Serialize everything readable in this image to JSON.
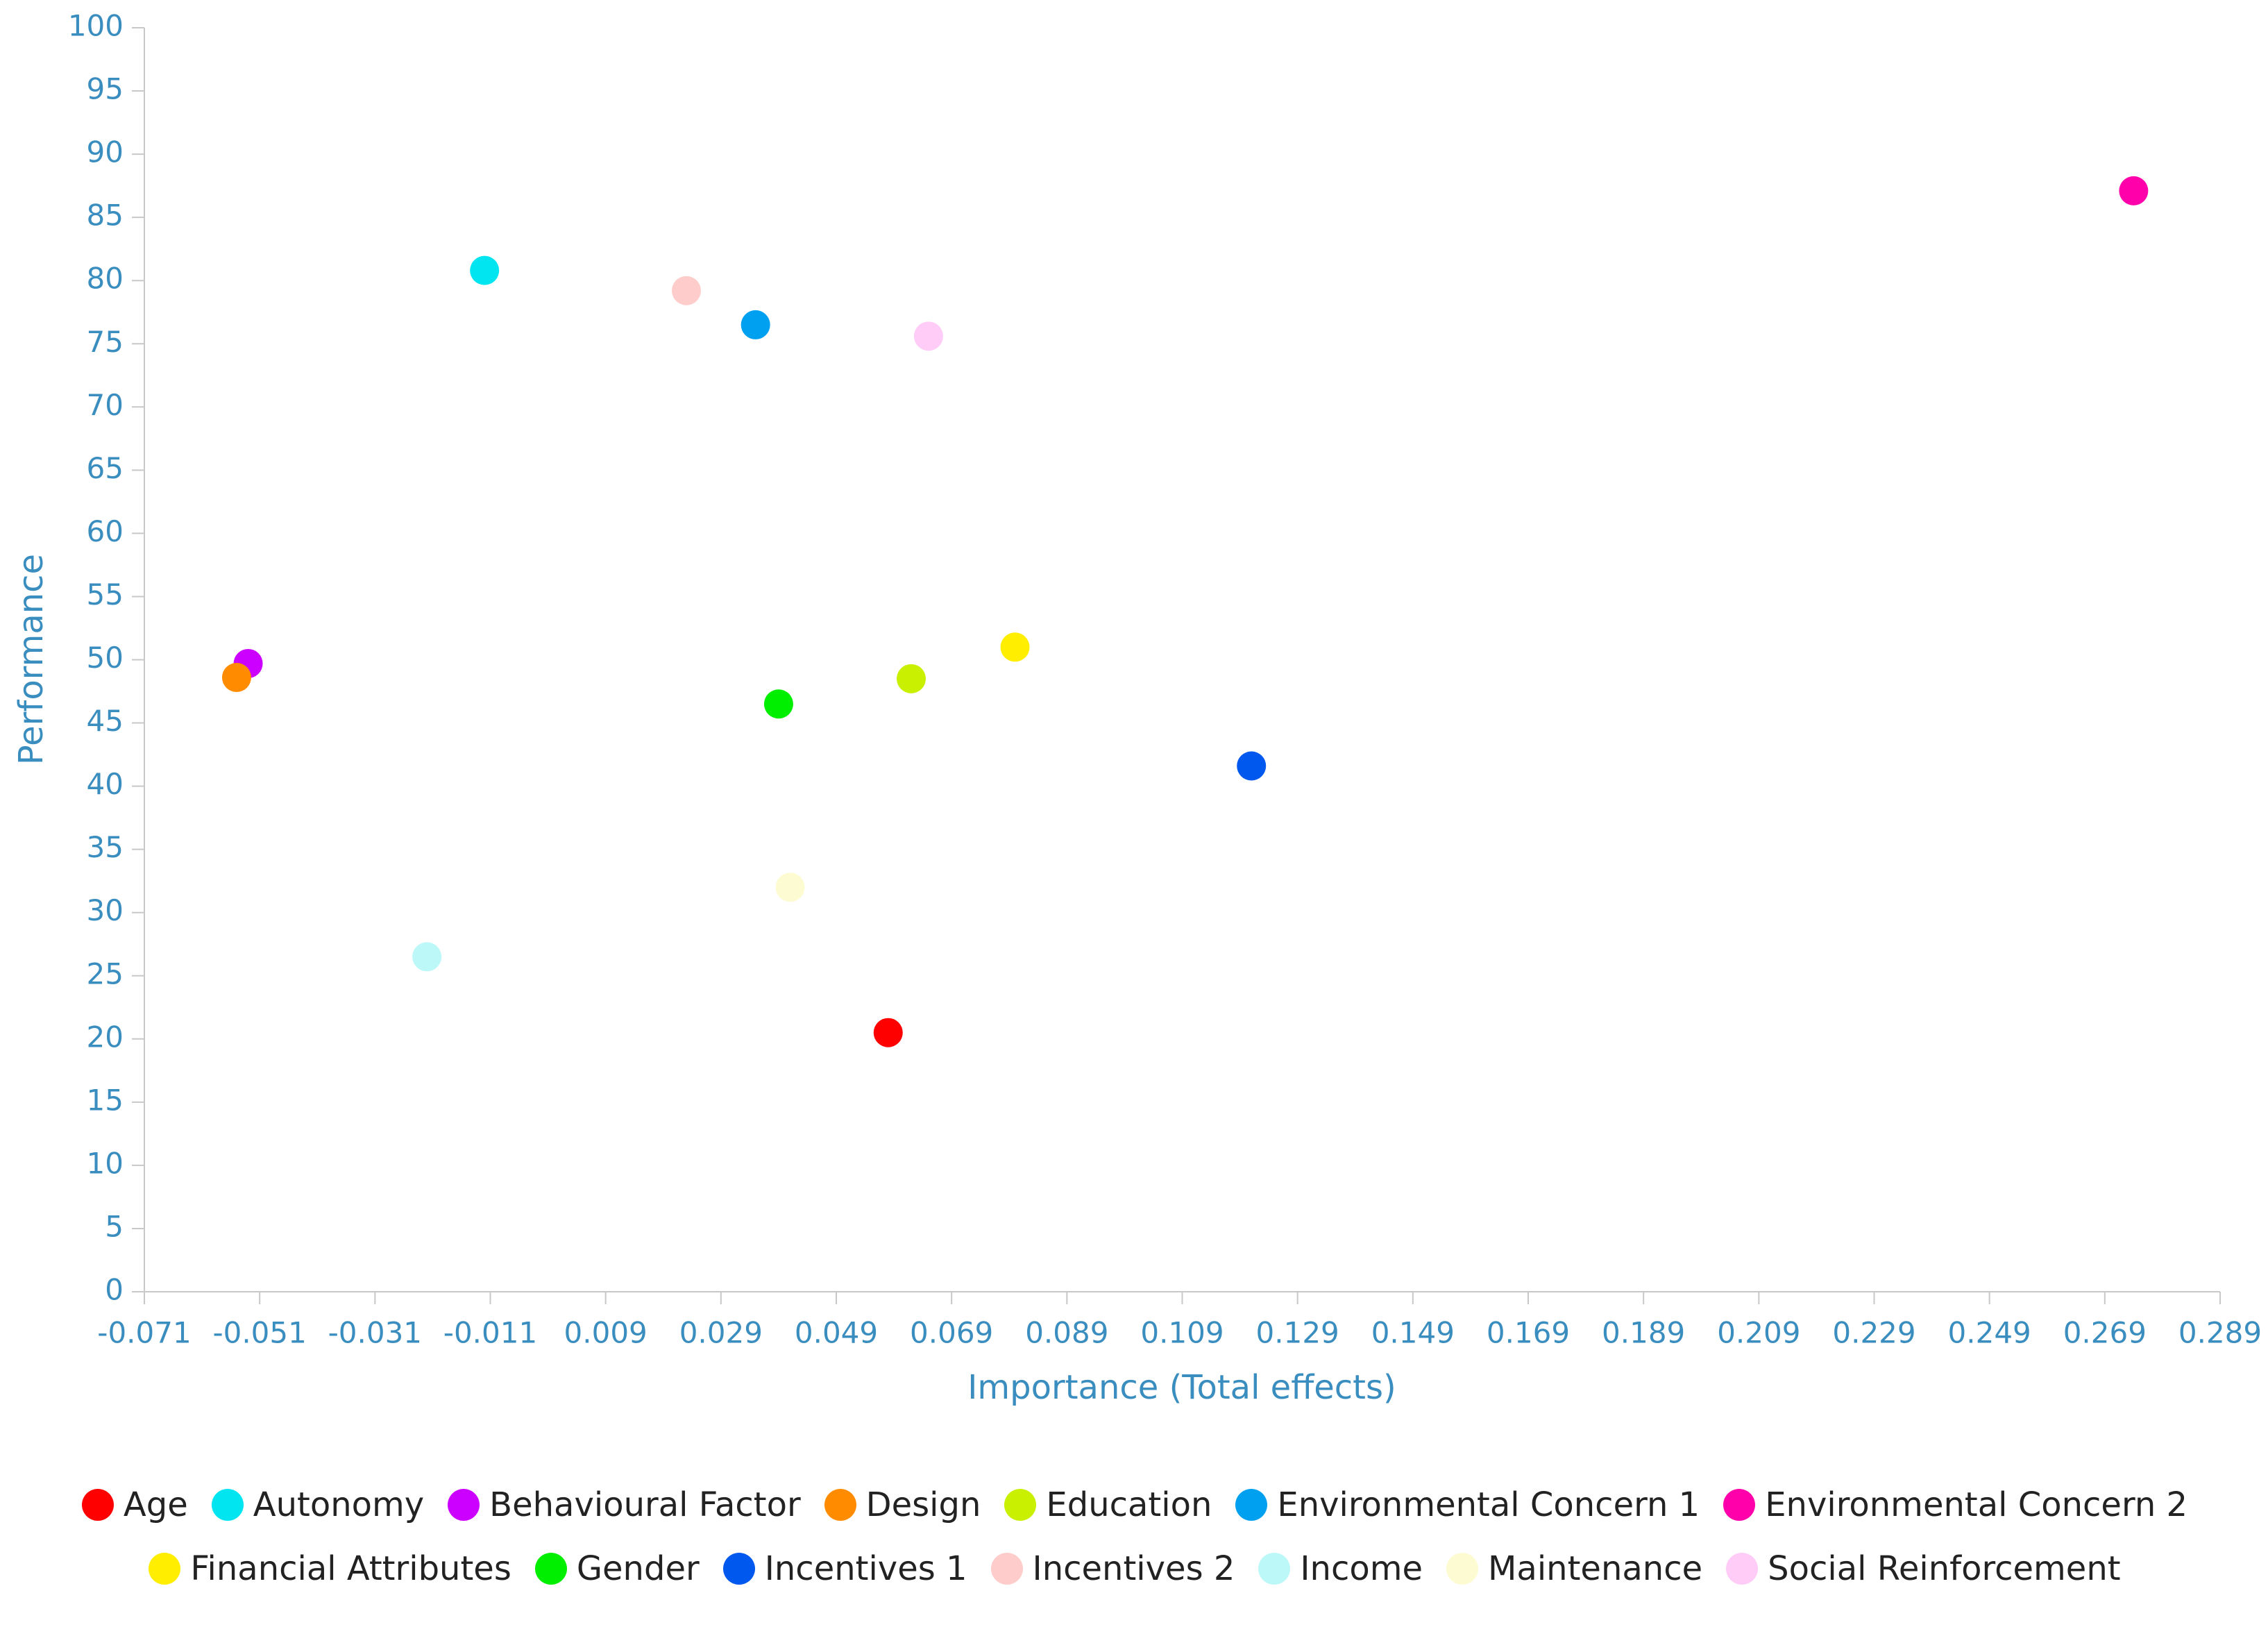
{
  "chart_data": {
    "type": "scatter",
    "x_label": "Importance (Total effects)",
    "y_label": "Performance",
    "xlim": [
      -0.071,
      0.289
    ],
    "xticks": [
      -0.071,
      -0.051,
      -0.031,
      -0.011,
      0.009,
      0.029,
      0.049,
      0.069,
      0.089,
      0.109,
      0.129,
      0.149,
      0.169,
      0.189,
      0.209,
      0.229,
      0.249,
      0.269,
      0.289
    ],
    "ylim": [
      0,
      100
    ],
    "yticks": [
      0,
      5,
      10,
      15,
      20,
      25,
      30,
      35,
      40,
      45,
      50,
      55,
      60,
      65,
      70,
      75,
      80,
      85,
      90,
      95,
      100
    ],
    "grid": false,
    "legend": "bottom",
    "series": [
      {
        "name": "Age",
        "color": "#ff0000",
        "x": [
          0.058
        ],
        "values": [
          20.5
        ]
      },
      {
        "name": "Autonomy",
        "color": "#00e5f0",
        "x": [
          -0.012
        ],
        "values": [
          80.8
        ]
      },
      {
        "name": "Behavioural Factor",
        "color": "#cc00ff",
        "x": [
          -0.053
        ],
        "values": [
          49.7
        ]
      },
      {
        "name": "Design",
        "color": "#ff8c00",
        "x": [
          -0.055
        ],
        "values": [
          48.6
        ]
      },
      {
        "name": "Education",
        "color": "#c8f000",
        "x": [
          0.062
        ],
        "values": [
          48.5
        ]
      },
      {
        "name": "Environmental Concern 1",
        "color": "#00a0f0",
        "x": [
          0.035
        ],
        "values": [
          76.5
        ]
      },
      {
        "name": "Environmental Concern 2",
        "color": "#ff00aa",
        "x": [
          0.274
        ],
        "values": [
          87.1
        ]
      },
      {
        "name": "Financial Attributes",
        "color": "#ffee00",
        "x": [
          0.08
        ],
        "values": [
          51.0
        ]
      },
      {
        "name": "Gender",
        "color": "#00ee00",
        "x": [
          0.039
        ],
        "values": [
          46.5
        ]
      },
      {
        "name": "Incentives 1",
        "color": "#0058ee",
        "x": [
          0.121
        ],
        "values": [
          41.6
        ]
      },
      {
        "name": "Incentives 2",
        "color": "#ffcccc",
        "x": [
          0.023
        ],
        "values": [
          79.2
        ]
      },
      {
        "name": "Income",
        "color": "#bdf8f8",
        "x": [
          -0.022
        ],
        "values": [
          26.5
        ]
      },
      {
        "name": "Maintenance",
        "color": "#fdfbd2",
        "x": [
          0.041
        ],
        "values": [
          32.0
        ]
      },
      {
        "name": "Social Reinforcement",
        "color": "#ffccf8",
        "x": [
          0.065
        ],
        "values": [
          75.6
        ]
      }
    ]
  }
}
